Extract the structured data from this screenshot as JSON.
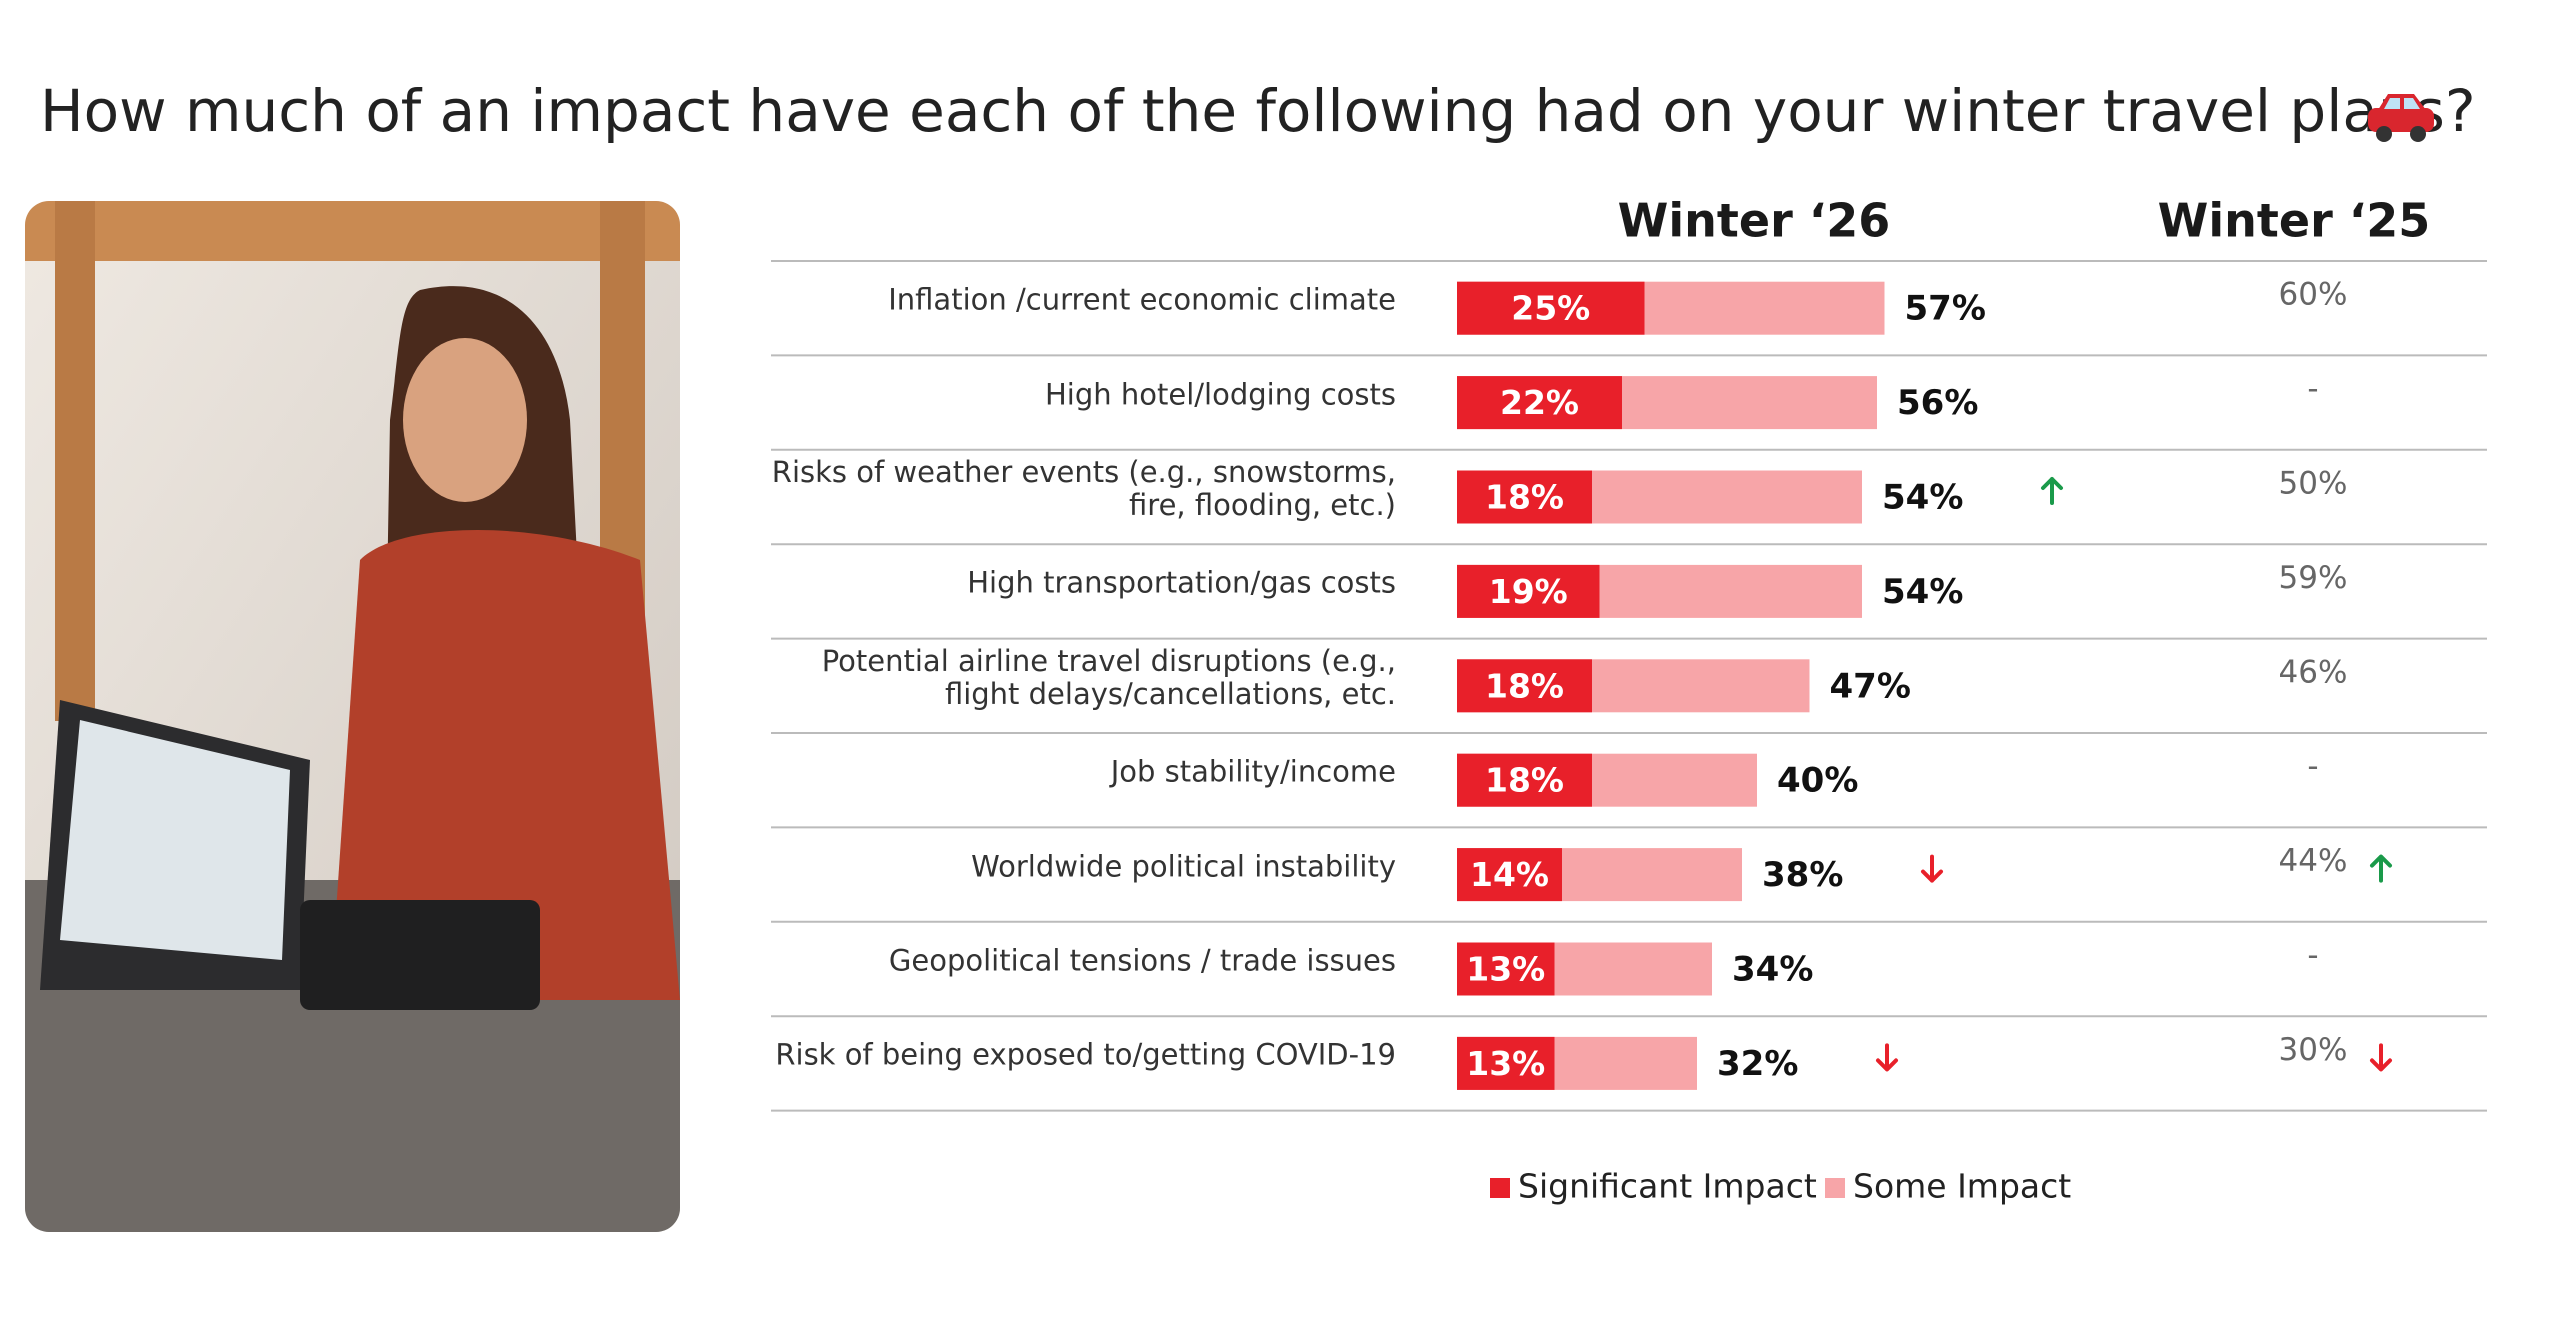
{
  "chart_data": {
    "type": "bar",
    "barmode": "overlay",
    "title": "How much of an impact have each of the following had on your winter travel plans?",
    "header": "Winter ‘26",
    "categories": [
      "Inflation /current economic climate",
      "High hotel/lodging costs",
      "Risks of weather events (e.g., snowstorms, fire, flooding, etc.)",
      "High transportation/gas costs",
      "Potential airline travel disruptions (e.g., flight delays/cancellations, etc.",
      "Job stability/income",
      "Worldwide political instability",
      "Geopolitical tensions / trade issues",
      "Risk of being exposed to/getting COVID-19"
    ],
    "series": [
      {
        "name": "Significant Impact",
        "color": "#e8202a",
        "values": [
          25,
          22,
          18,
          19,
          18,
          18,
          14,
          13,
          13
        ],
        "value_labels": [
          "25%",
          "22%",
          "18%",
          "19%",
          "18%",
          "18%",
          "14%",
          "13%",
          "13%"
        ]
      },
      {
        "name": "Some Impact",
        "color": "#f7a5a8",
        "values": [
          57,
          56,
          54,
          54,
          47,
          40,
          38,
          34,
          32
        ],
        "value_labels": [
          "57%",
          "56%",
          "54%",
          "54%",
          "47%",
          "40%",
          "38%",
          "34%",
          "32%"
        ]
      }
    ],
    "trend": [
      null,
      null,
      "up",
      null,
      null,
      null,
      "down",
      null,
      "down"
    ],
    "comparison": {
      "name": "Winter ‘25",
      "values": [
        60,
        null,
        50,
        59,
        46,
        null,
        44,
        null,
        30
      ],
      "value_labels": [
        "60%",
        "-",
        "50%",
        "59%",
        "46%",
        "-",
        "44%",
        "-",
        "30%"
      ],
      "trend": [
        null,
        null,
        null,
        null,
        null,
        null,
        "up",
        null,
        "down"
      ]
    }
  }
}
